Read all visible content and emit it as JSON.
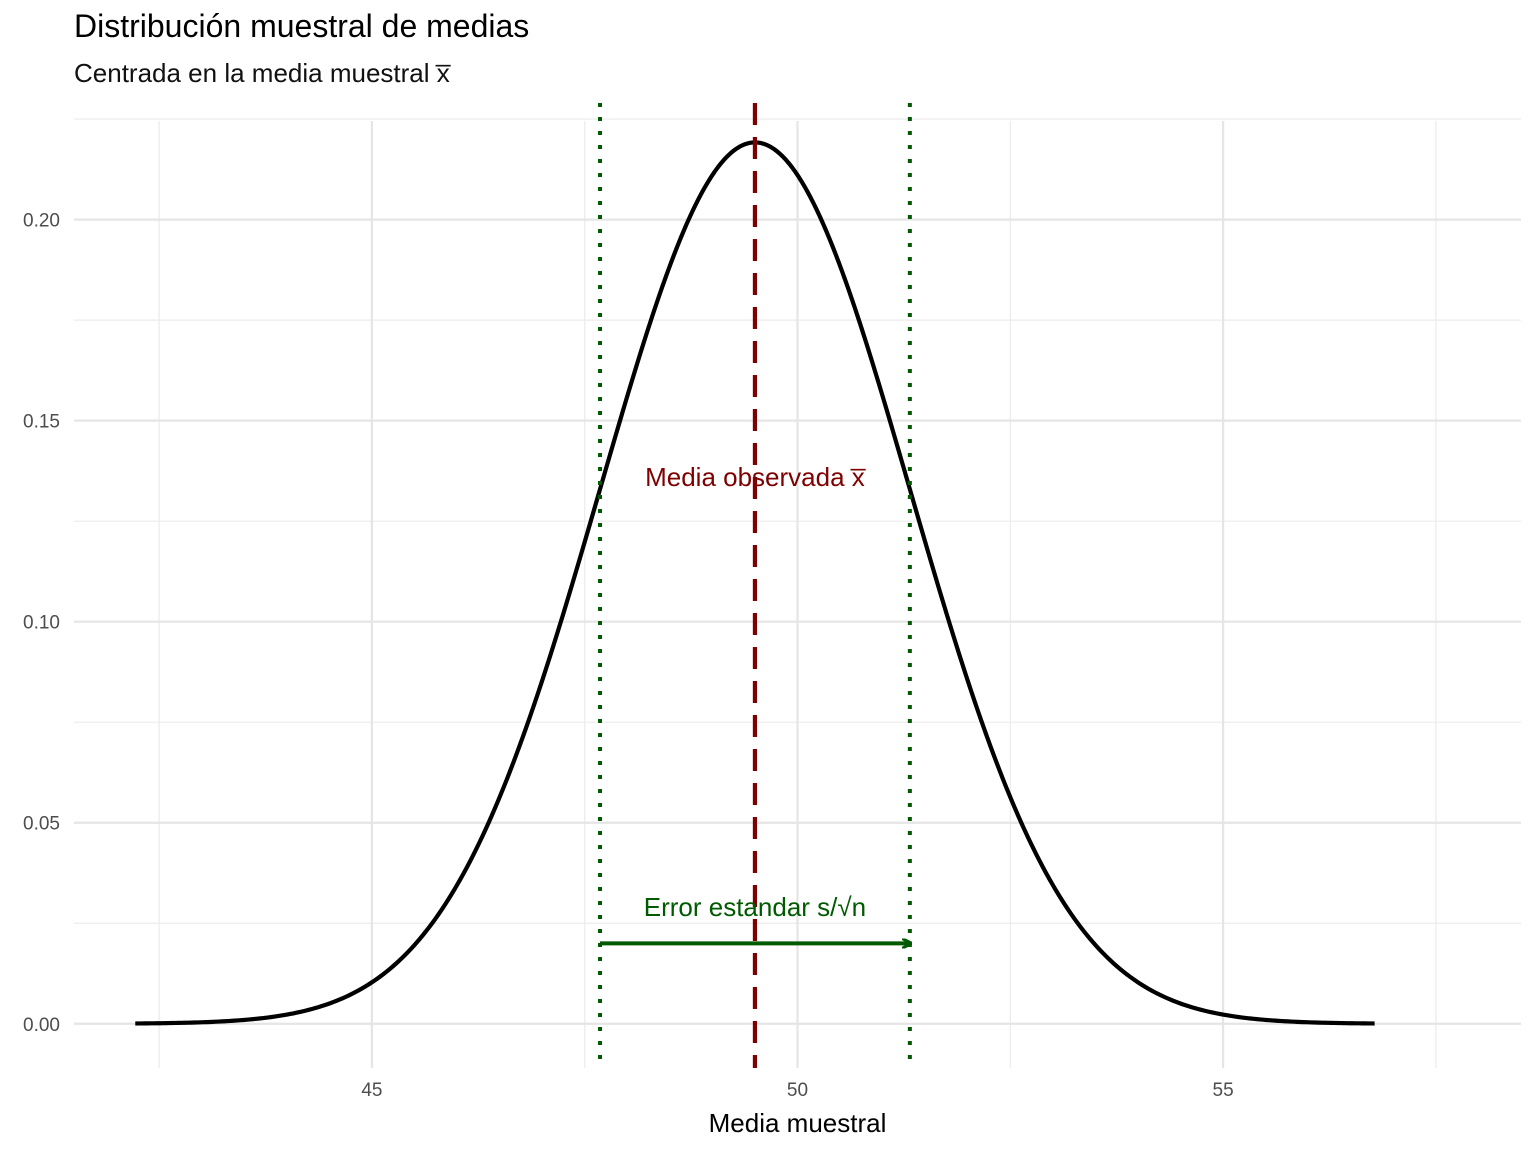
{
  "title": "Distribución muestral de medias",
  "subtitle": "Centrada en la media muestral x̅",
  "chart_data": {
    "type": "line",
    "title": "Distribución muestral de medias",
    "subtitle": "Centrada en la media muestral x̅",
    "xlabel": "Media muestral",
    "ylabel": "",
    "xlim": [
      41.5,
      58.5
    ],
    "ylim": [
      -0.011,
      0.229
    ],
    "x_ticks": [
      "45",
      "50",
      "55"
    ],
    "y_ticks": [
      "0.00",
      "0.05",
      "0.10",
      "0.15",
      "0.20"
    ],
    "grid": true,
    "distribution": {
      "kind": "normal",
      "mean": 49.5,
      "sd": 1.82,
      "x_from": 42.22,
      "x_to": 56.78
    },
    "mean_line": {
      "x": 49.5,
      "style": "dashed",
      "color": "#7f0000"
    },
    "se_lines": {
      "x": [
        47.68,
        51.32
      ],
      "style": "dotted",
      "color": "#005a00"
    },
    "arrow": {
      "x_from": 47.68,
      "x_to": 51.32,
      "y": 0.02,
      "color": "#005a00"
    },
    "annotations": [
      {
        "text": "Media observada  x̅",
        "x": 49.5,
        "y": 0.136,
        "color": "#7f0000"
      },
      {
        "text": "Error estandar  s/√n",
        "x": 49.5,
        "y": 0.029,
        "color": "#005a00"
      }
    ]
  }
}
